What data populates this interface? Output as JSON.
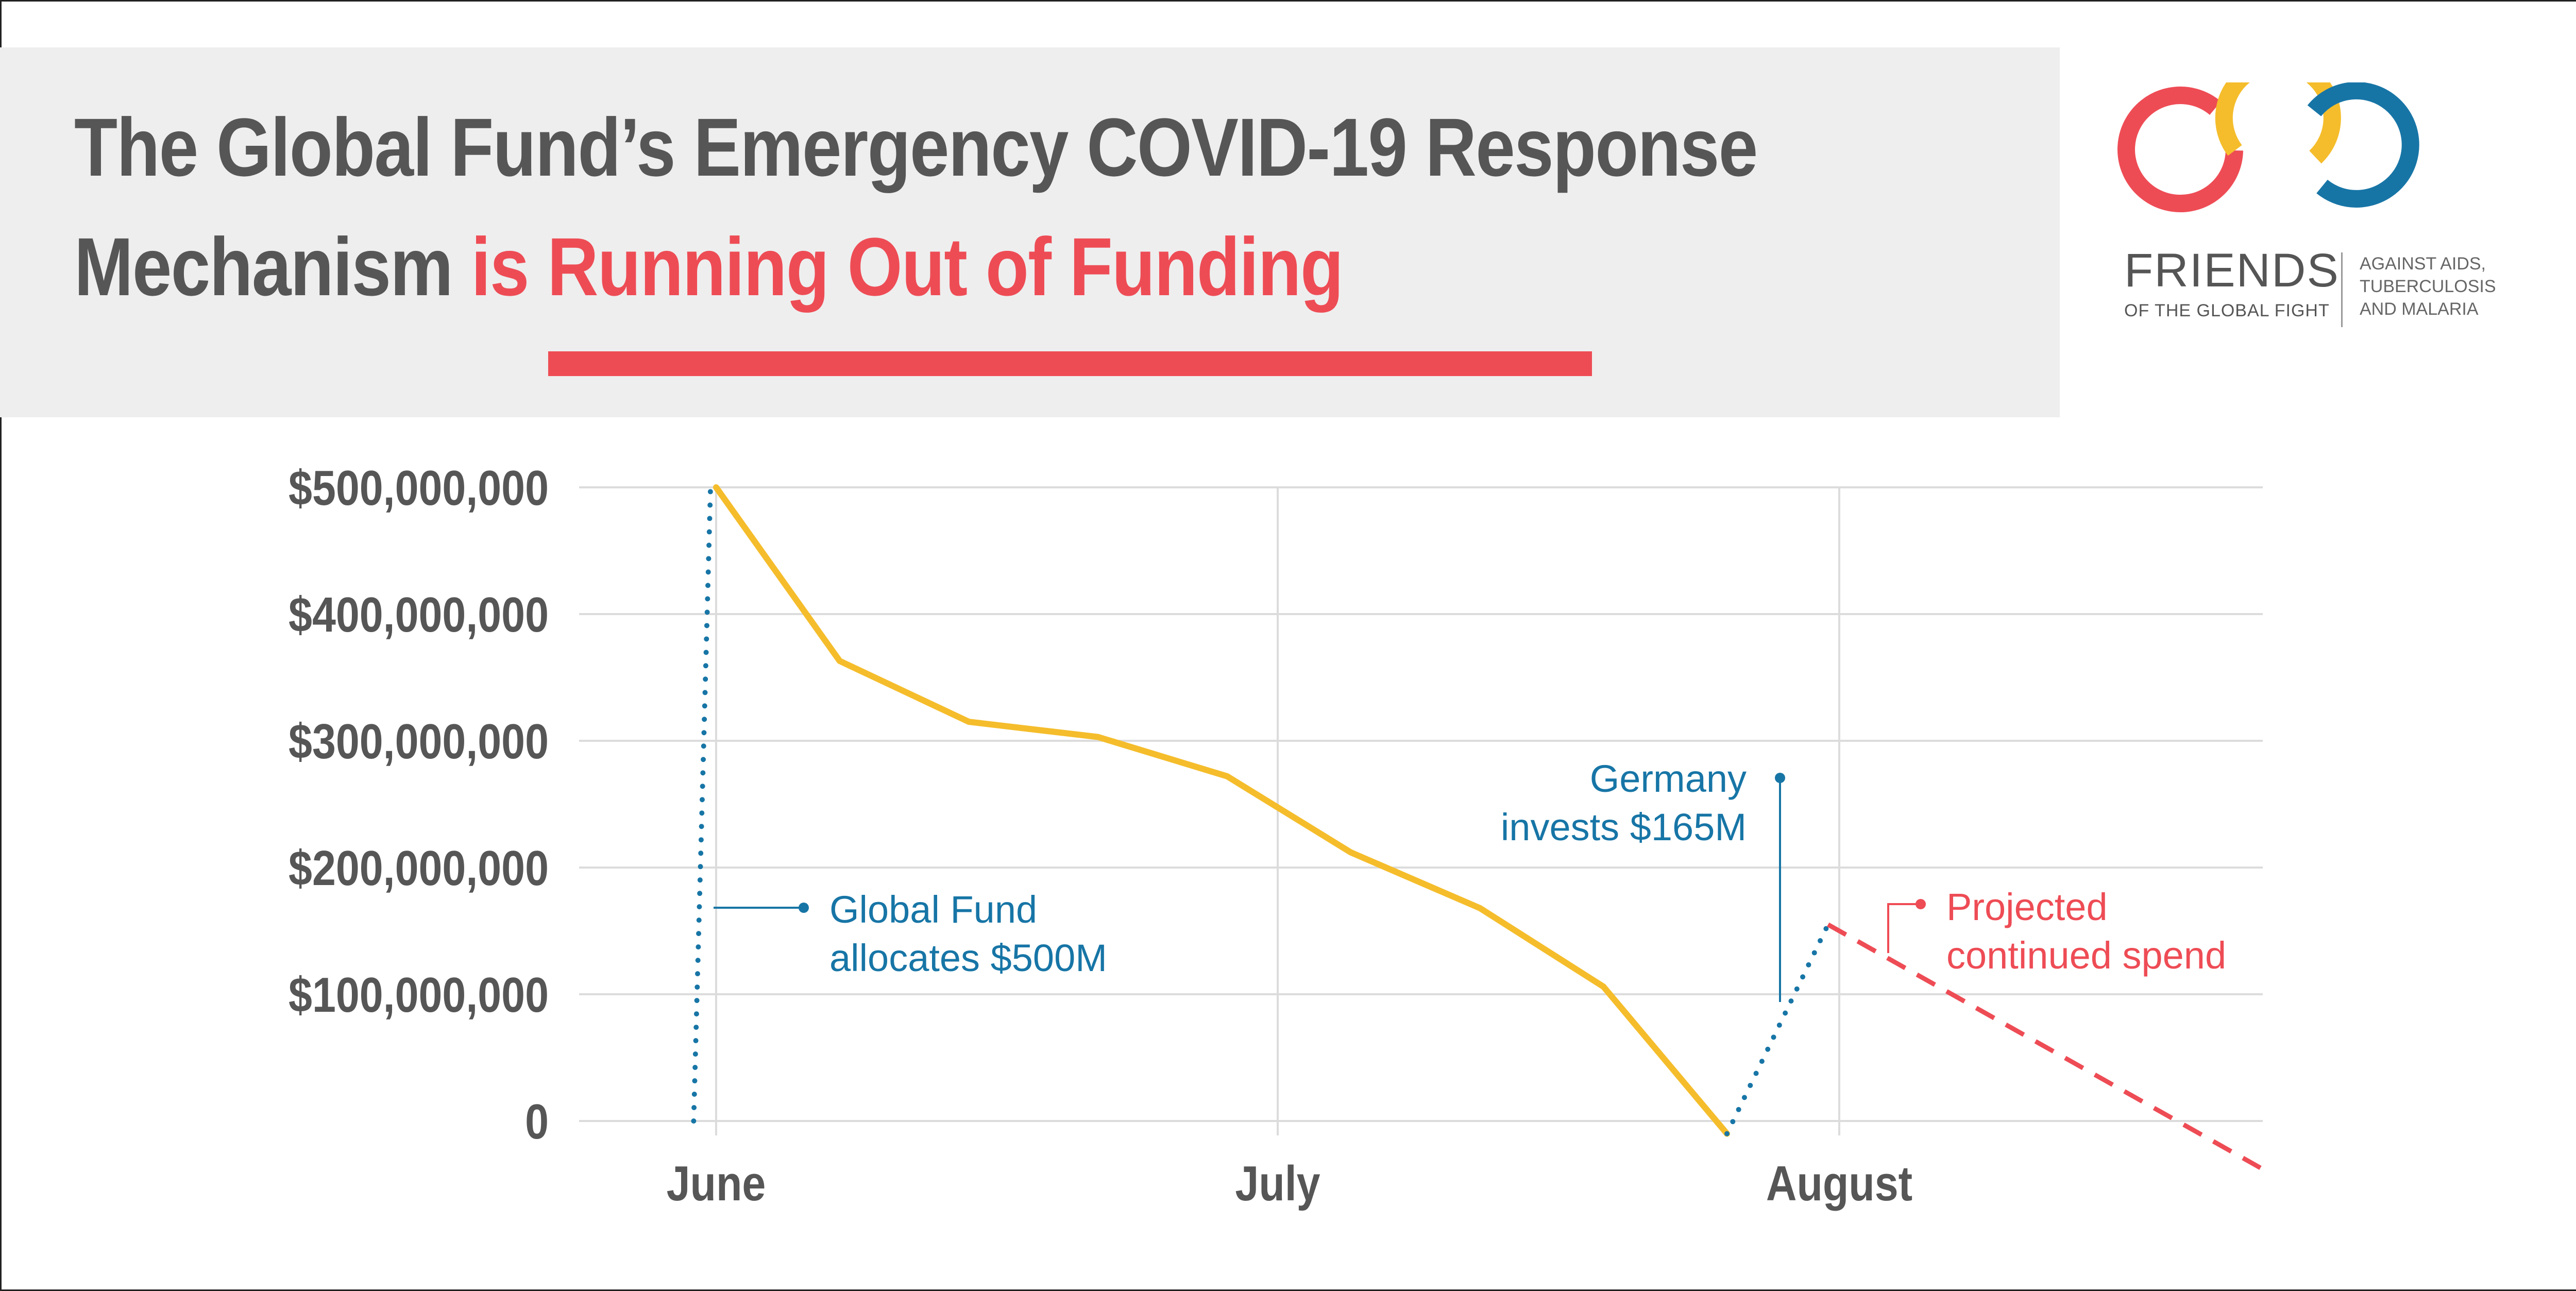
{
  "title": {
    "line1": "The Global Fund’s Emergency COVID-19 Response",
    "line2_plain": "Mechanism ",
    "line2_accent": "is Running Out of Funding"
  },
  "logo": {
    "name": "FRIENDS",
    "subtitle": "OF THE GLOBAL FIGHT",
    "tagline": "AGAINST AIDS,\nTUBERCULOSIS\nAND MALARIA"
  },
  "colors": {
    "accent_red": "#ee4c55",
    "spend_line": "#f5bd2b",
    "annotation_blue": "#1775a6",
    "text_gray": "#565656"
  },
  "chart_data": {
    "type": "line",
    "title": "",
    "xlabel": "",
    "ylabel": "",
    "ylim": [
      0,
      500000000
    ],
    "yticks": [
      {
        "value": 0,
        "label": "0"
      },
      {
        "value": 100000000,
        "label": "$100,000,000"
      },
      {
        "value": 200000000,
        "label": "$200,000,000"
      },
      {
        "value": 300000000,
        "label": "$300,000,000"
      },
      {
        "value": 400000000,
        "label": "$400,000,000"
      },
      {
        "value": 500000000,
        "label": "$500,000,000"
      }
    ],
    "xticks": [
      {
        "x": 0,
        "label": "June"
      },
      {
        "x": 1,
        "label": "July"
      },
      {
        "x": 2,
        "label": "August"
      }
    ],
    "grid": true,
    "series": [
      {
        "points": [
          [
            0,
            500000000
          ],
          [
            0.22,
            363000000
          ],
          [
            0.45,
            315000000
          ],
          [
            0.68,
            303000000
          ],
          [
            0.91,
            272000000
          ],
          [
            1.13,
            212000000
          ],
          [
            1.36,
            168000000
          ],
          [
            1.58,
            106000000
          ],
          [
            1.8,
            -10000000
          ]
        ],
        "style": "solid"
      },
      {
        "points": [
          [
            -0.04,
            0
          ],
          [
            -0.01,
            500000000
          ]
        ],
        "style": "dotted"
      },
      {
        "points": [
          [
            1.8,
            -10000000
          ],
          [
            1.98,
            155000000
          ]
        ],
        "style": "dotted"
      },
      {
        "points": [
          [
            1.98,
            155000000
          ],
          [
            2.75,
            -37000000
          ]
        ],
        "style": "dashed"
      }
    ],
    "annotations": [
      {
        "text_lines": [
          "Global Fund",
          "allocates $500M"
        ]
      },
      {
        "text_lines": [
          "Germany",
          "invests $165M"
        ]
      },
      {
        "text_lines": [
          "Projected",
          "continued spend"
        ]
      }
    ]
  }
}
